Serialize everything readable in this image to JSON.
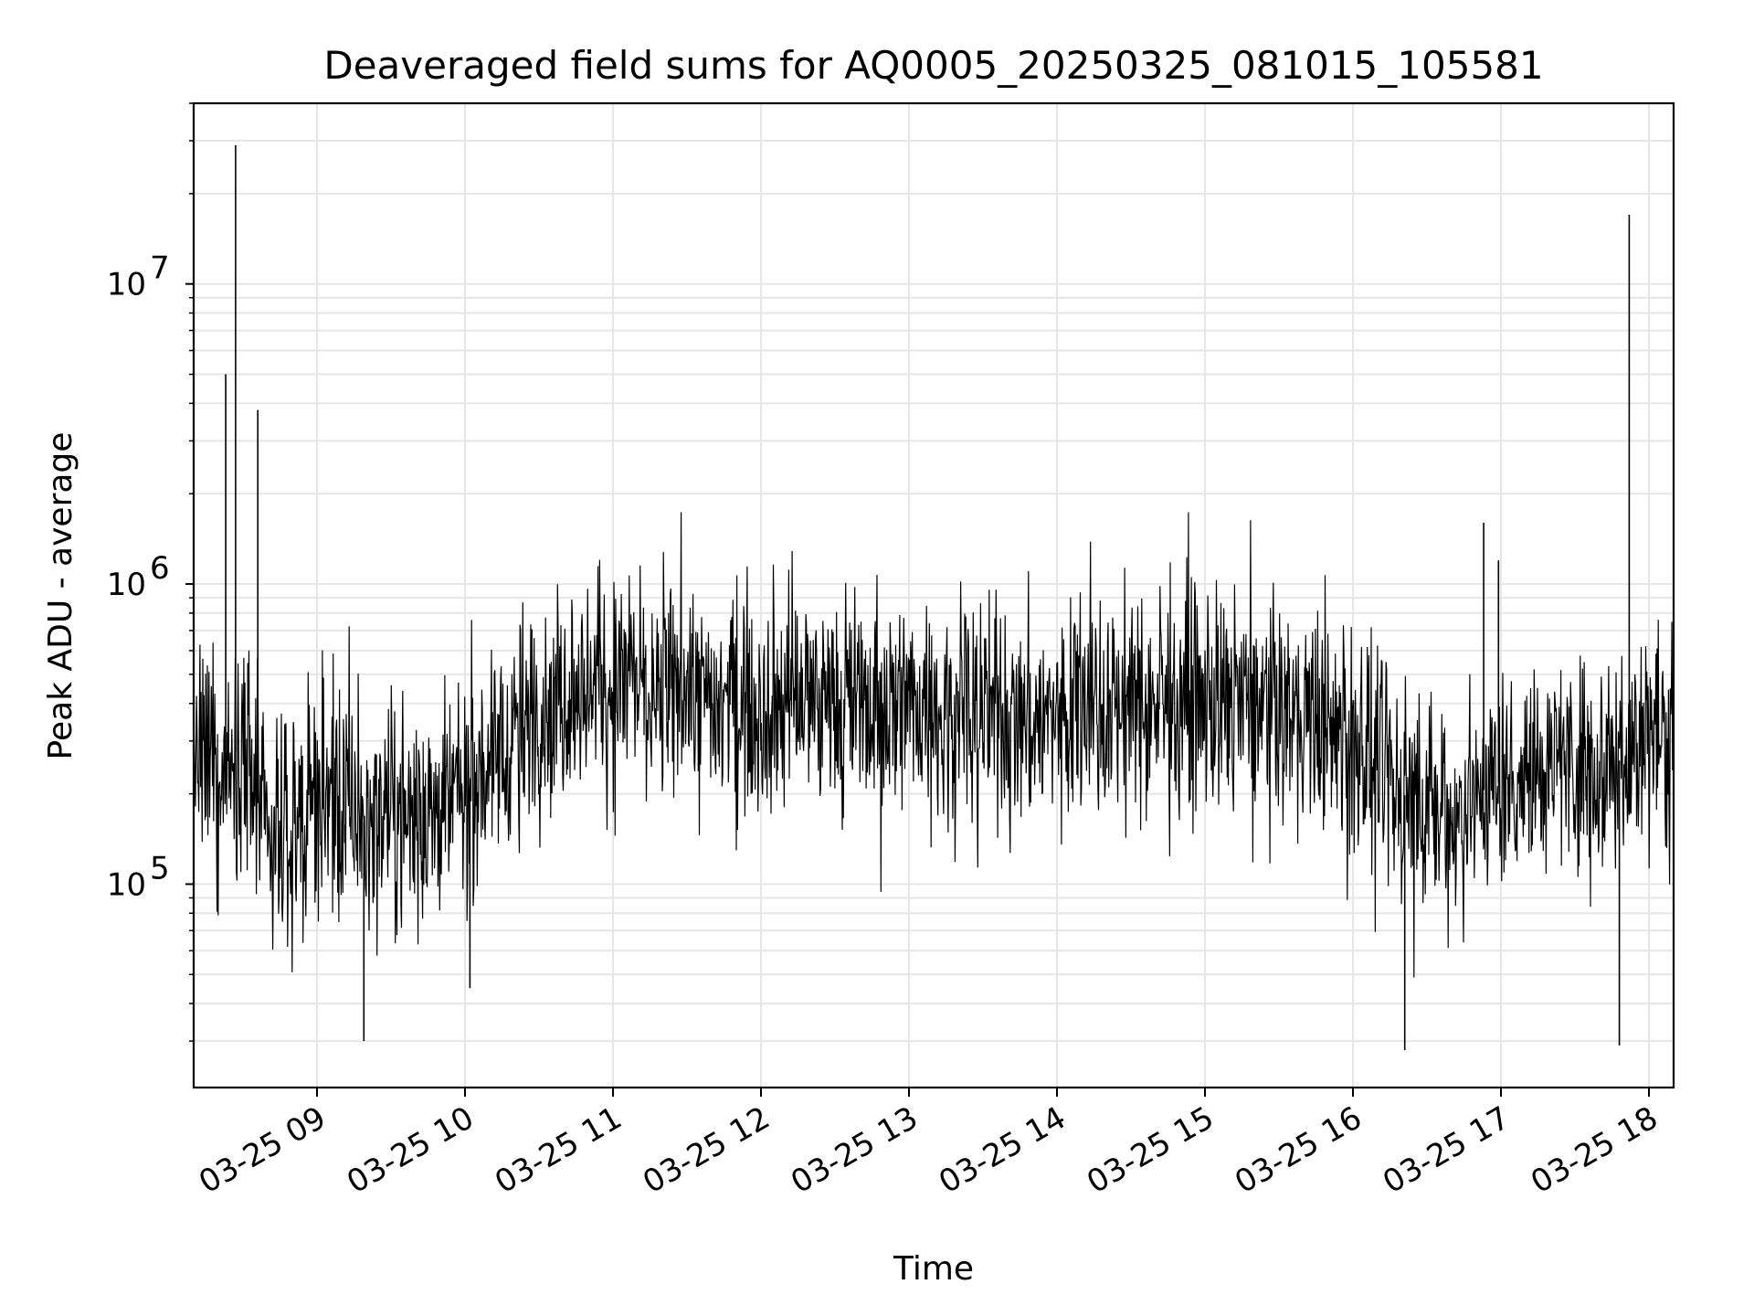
{
  "chart_data": {
    "type": "line",
    "title": "Deaveraged field sums for AQ0005_20250325_081015_105581",
    "xlabel": "Time",
    "ylabel": "Peak ADU - average",
    "yscale": "log",
    "ylim": [
      21000,
      40000000
    ],
    "xlim": [
      "2025-03-25 08:10",
      "2025-03-25 18:10"
    ],
    "grid": true,
    "line_color": "#000000",
    "x_ticks": [
      {
        "value": "2025-03-25 09:00",
        "label": "03-25 09"
      },
      {
        "value": "2025-03-25 10:00",
        "label": "03-25 10"
      },
      {
        "value": "2025-03-25 11:00",
        "label": "03-25 11"
      },
      {
        "value": "2025-03-25 12:00",
        "label": "03-25 12"
      },
      {
        "value": "2025-03-25 13:00",
        "label": "03-25 13"
      },
      {
        "value": "2025-03-25 14:00",
        "label": "03-25 14"
      },
      {
        "value": "2025-03-25 15:00",
        "label": "03-25 15"
      },
      {
        "value": "2025-03-25 16:00",
        "label": "03-25 16"
      },
      {
        "value": "2025-03-25 17:00",
        "label": "03-25 17"
      },
      {
        "value": "2025-03-25 18:00",
        "label": "03-25 18"
      }
    ],
    "y_ticks": [
      {
        "value": 100000,
        "base": "10",
        "exp": "5"
      },
      {
        "value": 1000000,
        "base": "10",
        "exp": "6"
      },
      {
        "value": 10000000,
        "base": "10",
        "exp": "7"
      }
    ],
    "series": [
      {
        "x": [
          "2025-03-25 08:10",
          "2025-03-25 08:15",
          "2025-03-25 08:20",
          "2025-03-25 08:25",
          "2025-03-25 08:30",
          "2025-03-25 08:35",
          "2025-03-25 08:40",
          "2025-03-25 08:45",
          "2025-03-25 08:50",
          "2025-03-25 08:55",
          "2025-03-25 09:00",
          "2025-03-25 09:10",
          "2025-03-25 09:20",
          "2025-03-25 09:30",
          "2025-03-25 09:40",
          "2025-03-25 09:50",
          "2025-03-25 10:00",
          "2025-03-25 10:10",
          "2025-03-25 10:20",
          "2025-03-25 10:30",
          "2025-03-25 10:40",
          "2025-03-25 10:50",
          "2025-03-25 11:00",
          "2025-03-25 11:10",
          "2025-03-25 11:20",
          "2025-03-25 11:30",
          "2025-03-25 11:45",
          "2025-03-25 12:00",
          "2025-03-25 12:15",
          "2025-03-25 12:30",
          "2025-03-25 12:45",
          "2025-03-25 13:00",
          "2025-03-25 13:15",
          "2025-03-25 13:30",
          "2025-03-25 13:45",
          "2025-03-25 14:00",
          "2025-03-25 14:15",
          "2025-03-25 14:30",
          "2025-03-25 14:45",
          "2025-03-25 15:00",
          "2025-03-25 15:15",
          "2025-03-25 15:30",
          "2025-03-25 15:45",
          "2025-03-25 16:00",
          "2025-03-25 16:10",
          "2025-03-25 16:20",
          "2025-03-25 16:30",
          "2025-03-25 16:40",
          "2025-03-25 16:50",
          "2025-03-25 17:00",
          "2025-03-25 17:10",
          "2025-03-25 17:20",
          "2025-03-25 17:30",
          "2025-03-25 17:40",
          "2025-03-25 17:50",
          "2025-03-25 18:00",
          "2025-03-25 18:10"
        ],
        "y": [
          220000,
          250000,
          240000,
          260000,
          300000,
          200000,
          140000,
          130000,
          150000,
          170000,
          200000,
          170000,
          160000,
          170000,
          175000,
          180000,
          190000,
          260000,
          320000,
          380000,
          420000,
          450000,
          480000,
          470000,
          440000,
          410000,
          400000,
          420000,
          410000,
          400000,
          400000,
          400000,
          380000,
          370000,
          350000,
          360000,
          380000,
          390000,
          400000,
          410000,
          390000,
          380000,
          350000,
          300000,
          230000,
          200000,
          180000,
          170000,
          200000,
          220000,
          240000,
          260000,
          260000,
          250000,
          260000,
          300000,
          340000
        ]
      }
    ],
    "spikes": [
      {
        "x": "2025-03-25 08:23",
        "y": 5000000
      },
      {
        "x": "2025-03-25 08:27",
        "y": 29000000
      },
      {
        "x": "2025-03-25 08:36",
        "y": 3800000
      },
      {
        "x": "2025-03-25 17:52",
        "y": 17000000
      },
      {
        "x": "2025-03-25 16:53",
        "y": 1600000
      },
      {
        "x": "2025-03-25 16:59",
        "y": 1200000
      }
    ],
    "dips": [
      {
        "x": "2025-03-25 09:19",
        "y": 30000
      },
      {
        "x": "2025-03-25 16:21",
        "y": 28000
      },
      {
        "x": "2025-03-25 17:48",
        "y": 29000
      },
      {
        "x": "2025-03-25 10:02",
        "y": 45000
      }
    ]
  }
}
